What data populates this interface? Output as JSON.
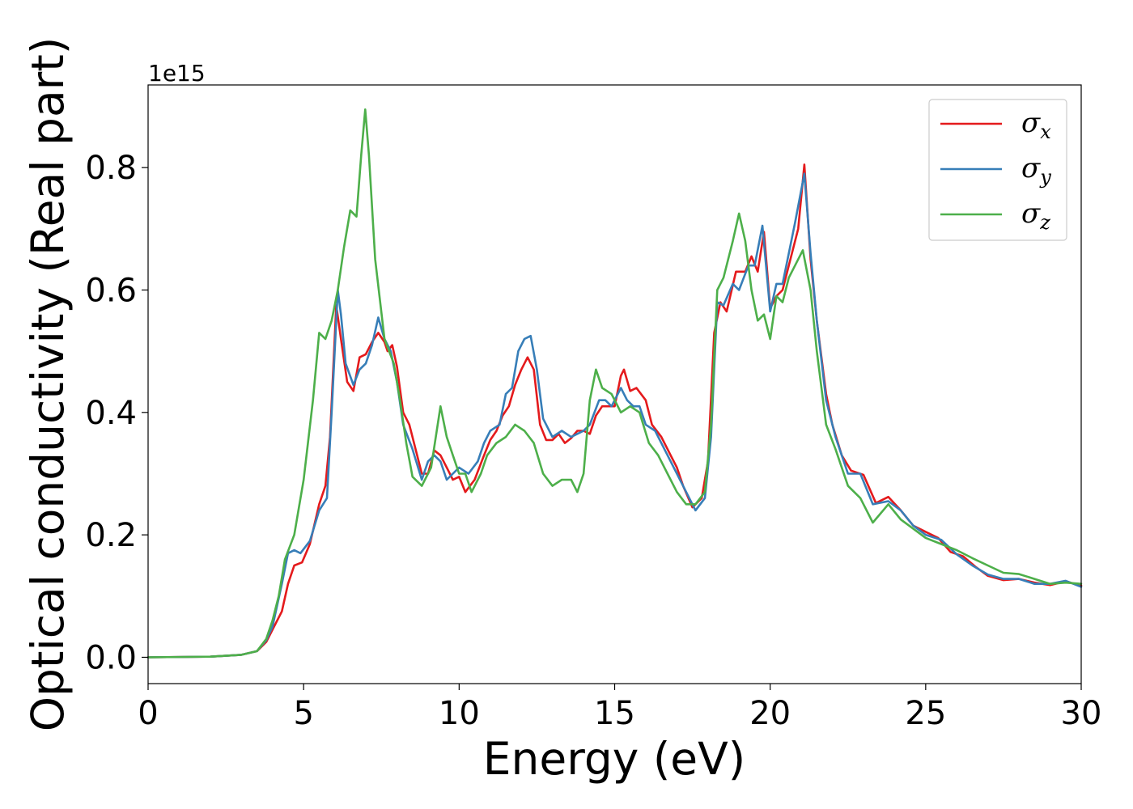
{
  "chart_data": {
    "type": "line",
    "xlabel": "Energy (eV)",
    "ylabel": "Optical conductivity (Real part)",
    "y_offset_text": "1e15",
    "xlim": [
      0,
      30
    ],
    "ylim": [
      -0.043,
      0.935
    ],
    "xticks": [
      0,
      5,
      10,
      15,
      20,
      25,
      30
    ],
    "xtick_labels": [
      "0",
      "5",
      "10",
      "15",
      "20",
      "25",
      "30"
    ],
    "yticks": [
      0.0,
      0.2,
      0.4,
      0.6,
      0.8
    ],
    "ytick_labels": [
      "0.0",
      "0.2",
      "0.4",
      "0.6",
      "0.8"
    ],
    "grid": false,
    "legend_position": "top-right",
    "series": [
      {
        "name": "σ",
        "subscript": "x",
        "color": "#e41a1c",
        "points": [
          [
            0,
            0
          ],
          [
            2,
            0.001
          ],
          [
            3,
            0.004
          ],
          [
            3.5,
            0.01
          ],
          [
            3.8,
            0.025
          ],
          [
            4.0,
            0.045
          ],
          [
            4.3,
            0.075
          ],
          [
            4.5,
            0.12
          ],
          [
            4.7,
            0.15
          ],
          [
            4.95,
            0.155
          ],
          [
            5.2,
            0.185
          ],
          [
            5.5,
            0.25
          ],
          [
            5.7,
            0.28
          ],
          [
            5.85,
            0.36
          ],
          [
            6.05,
            0.575
          ],
          [
            6.2,
            0.52
          ],
          [
            6.4,
            0.45
          ],
          [
            6.6,
            0.435
          ],
          [
            6.8,
            0.49
          ],
          [
            7.0,
            0.495
          ],
          [
            7.2,
            0.515
          ],
          [
            7.4,
            0.53
          ],
          [
            7.6,
            0.515
          ],
          [
            7.7,
            0.5
          ],
          [
            7.85,
            0.51
          ],
          [
            8.0,
            0.475
          ],
          [
            8.2,
            0.4
          ],
          [
            8.4,
            0.38
          ],
          [
            8.6,
            0.34
          ],
          [
            8.8,
            0.3
          ],
          [
            9.0,
            0.3
          ],
          [
            9.2,
            0.338
          ],
          [
            9.4,
            0.33
          ],
          [
            9.6,
            0.31
          ],
          [
            9.8,
            0.29
          ],
          [
            10.0,
            0.295
          ],
          [
            10.2,
            0.27
          ],
          [
            10.5,
            0.29
          ],
          [
            10.8,
            0.33
          ],
          [
            11.0,
            0.355
          ],
          [
            11.2,
            0.37
          ],
          [
            11.4,
            0.395
          ],
          [
            11.6,
            0.41
          ],
          [
            11.8,
            0.445
          ],
          [
            12.0,
            0.47
          ],
          [
            12.2,
            0.49
          ],
          [
            12.4,
            0.47
          ],
          [
            12.6,
            0.38
          ],
          [
            12.8,
            0.355
          ],
          [
            13.0,
            0.355
          ],
          [
            13.2,
            0.365
          ],
          [
            13.4,
            0.35
          ],
          [
            13.6,
            0.358
          ],
          [
            13.8,
            0.37
          ],
          [
            14.0,
            0.37
          ],
          [
            14.2,
            0.365
          ],
          [
            14.4,
            0.395
          ],
          [
            14.6,
            0.41
          ],
          [
            14.8,
            0.41
          ],
          [
            15.0,
            0.41
          ],
          [
            15.2,
            0.46
          ],
          [
            15.3,
            0.47
          ],
          [
            15.5,
            0.435
          ],
          [
            15.7,
            0.44
          ],
          [
            16.0,
            0.42
          ],
          [
            16.2,
            0.38
          ],
          [
            16.5,
            0.36
          ],
          [
            16.8,
            0.33
          ],
          [
            17.0,
            0.31
          ],
          [
            17.2,
            0.28
          ],
          [
            17.5,
            0.245
          ],
          [
            17.8,
            0.26
          ],
          [
            18.0,
            0.32
          ],
          [
            18.2,
            0.53
          ],
          [
            18.4,
            0.58
          ],
          [
            18.6,
            0.565
          ],
          [
            18.9,
            0.63
          ],
          [
            19.2,
            0.63
          ],
          [
            19.4,
            0.655
          ],
          [
            19.6,
            0.63
          ],
          [
            19.8,
            0.695
          ],
          [
            20.0,
            0.57
          ],
          [
            20.2,
            0.59
          ],
          [
            20.4,
            0.6
          ],
          [
            20.6,
            0.64
          ],
          [
            20.9,
            0.7
          ],
          [
            21.1,
            0.805
          ],
          [
            21.3,
            0.65
          ],
          [
            21.5,
            0.55
          ],
          [
            21.8,
            0.43
          ],
          [
            22.0,
            0.38
          ],
          [
            22.3,
            0.33
          ],
          [
            22.6,
            0.305
          ],
          [
            23.0,
            0.298
          ],
          [
            23.4,
            0.252
          ],
          [
            23.8,
            0.262
          ],
          [
            24.2,
            0.24
          ],
          [
            24.6,
            0.215
          ],
          [
            25.0,
            0.205
          ],
          [
            25.4,
            0.195
          ],
          [
            25.8,
            0.172
          ],
          [
            26.2,
            0.165
          ],
          [
            26.6,
            0.148
          ],
          [
            27.0,
            0.133
          ],
          [
            27.5,
            0.126
          ],
          [
            28.0,
            0.128
          ],
          [
            28.5,
            0.122
          ],
          [
            29.0,
            0.118
          ],
          [
            29.5,
            0.124
          ],
          [
            30.0,
            0.117
          ]
        ]
      },
      {
        "name": "σ",
        "subscript": "y",
        "color": "#377eb8",
        "points": [
          [
            0,
            0
          ],
          [
            2,
            0.001
          ],
          [
            3,
            0.004
          ],
          [
            3.5,
            0.01
          ],
          [
            3.8,
            0.028
          ],
          [
            4.0,
            0.05
          ],
          [
            4.3,
            0.12
          ],
          [
            4.5,
            0.17
          ],
          [
            4.7,
            0.175
          ],
          [
            4.9,
            0.17
          ],
          [
            5.2,
            0.19
          ],
          [
            5.5,
            0.24
          ],
          [
            5.75,
            0.26
          ],
          [
            5.9,
            0.4
          ],
          [
            6.1,
            0.6
          ],
          [
            6.2,
            0.56
          ],
          [
            6.35,
            0.48
          ],
          [
            6.6,
            0.445
          ],
          [
            6.8,
            0.47
          ],
          [
            7.0,
            0.48
          ],
          [
            7.2,
            0.51
          ],
          [
            7.4,
            0.555
          ],
          [
            7.6,
            0.52
          ],
          [
            7.8,
            0.5
          ],
          [
            8.0,
            0.45
          ],
          [
            8.2,
            0.38
          ],
          [
            8.5,
            0.34
          ],
          [
            8.8,
            0.29
          ],
          [
            9.0,
            0.32
          ],
          [
            9.2,
            0.33
          ],
          [
            9.4,
            0.32
          ],
          [
            9.6,
            0.29
          ],
          [
            9.8,
            0.3
          ],
          [
            10.0,
            0.31
          ],
          [
            10.3,
            0.3
          ],
          [
            10.6,
            0.32
          ],
          [
            10.8,
            0.35
          ],
          [
            11.0,
            0.37
          ],
          [
            11.3,
            0.38
          ],
          [
            11.5,
            0.43
          ],
          [
            11.7,
            0.44
          ],
          [
            11.9,
            0.5
          ],
          [
            12.1,
            0.52
          ],
          [
            12.3,
            0.525
          ],
          [
            12.5,
            0.47
          ],
          [
            12.7,
            0.39
          ],
          [
            13.0,
            0.36
          ],
          [
            13.3,
            0.37
          ],
          [
            13.6,
            0.36
          ],
          [
            13.8,
            0.365
          ],
          [
            14.0,
            0.37
          ],
          [
            14.2,
            0.38
          ],
          [
            14.5,
            0.42
          ],
          [
            14.7,
            0.42
          ],
          [
            14.9,
            0.41
          ],
          [
            15.2,
            0.44
          ],
          [
            15.4,
            0.42
          ],
          [
            15.6,
            0.41
          ],
          [
            15.8,
            0.41
          ],
          [
            16.0,
            0.38
          ],
          [
            16.3,
            0.37
          ],
          [
            16.6,
            0.34
          ],
          [
            17.0,
            0.3
          ],
          [
            17.3,
            0.27
          ],
          [
            17.6,
            0.24
          ],
          [
            17.9,
            0.26
          ],
          [
            18.1,
            0.36
          ],
          [
            18.3,
            0.58
          ],
          [
            18.5,
            0.575
          ],
          [
            18.8,
            0.61
          ],
          [
            19.0,
            0.6
          ],
          [
            19.3,
            0.64
          ],
          [
            19.5,
            0.64
          ],
          [
            19.75,
            0.705
          ],
          [
            20.0,
            0.565
          ],
          [
            20.2,
            0.61
          ],
          [
            20.4,
            0.61
          ],
          [
            20.6,
            0.66
          ],
          [
            20.8,
            0.71
          ],
          [
            21.1,
            0.79
          ],
          [
            21.3,
            0.66
          ],
          [
            21.5,
            0.55
          ],
          [
            21.8,
            0.42
          ],
          [
            22.1,
            0.36
          ],
          [
            22.5,
            0.3
          ],
          [
            22.9,
            0.3
          ],
          [
            23.3,
            0.25
          ],
          [
            23.8,
            0.255
          ],
          [
            24.2,
            0.24
          ],
          [
            24.6,
            0.215
          ],
          [
            25.0,
            0.2
          ],
          [
            25.5,
            0.192
          ],
          [
            26.0,
            0.168
          ],
          [
            26.5,
            0.15
          ],
          [
            27.0,
            0.135
          ],
          [
            27.5,
            0.128
          ],
          [
            28.0,
            0.128
          ],
          [
            28.5,
            0.12
          ],
          [
            29.0,
            0.12
          ],
          [
            29.5,
            0.125
          ],
          [
            30.0,
            0.115
          ]
        ]
      },
      {
        "name": "σ",
        "subscript": "z",
        "color": "#4daf4a",
        "points": [
          [
            0,
            0
          ],
          [
            2,
            0.001
          ],
          [
            3,
            0.004
          ],
          [
            3.5,
            0.01
          ],
          [
            3.8,
            0.03
          ],
          [
            4.0,
            0.06
          ],
          [
            4.2,
            0.1
          ],
          [
            4.4,
            0.16
          ],
          [
            4.7,
            0.2
          ],
          [
            5.0,
            0.29
          ],
          [
            5.3,
            0.42
          ],
          [
            5.5,
            0.53
          ],
          [
            5.7,
            0.52
          ],
          [
            5.9,
            0.55
          ],
          [
            6.1,
            0.6
          ],
          [
            6.3,
            0.67
          ],
          [
            6.5,
            0.73
          ],
          [
            6.7,
            0.72
          ],
          [
            6.85,
            0.82
          ],
          [
            6.98,
            0.895
          ],
          [
            7.1,
            0.82
          ],
          [
            7.3,
            0.65
          ],
          [
            7.6,
            0.52
          ],
          [
            7.9,
            0.48
          ],
          [
            8.1,
            0.42
          ],
          [
            8.3,
            0.35
          ],
          [
            8.5,
            0.295
          ],
          [
            8.8,
            0.28
          ],
          [
            9.1,
            0.31
          ],
          [
            9.4,
            0.41
          ],
          [
            9.6,
            0.36
          ],
          [
            9.8,
            0.33
          ],
          [
            10.0,
            0.3
          ],
          [
            10.2,
            0.3
          ],
          [
            10.4,
            0.27
          ],
          [
            10.7,
            0.3
          ],
          [
            10.9,
            0.33
          ],
          [
            11.2,
            0.35
          ],
          [
            11.5,
            0.36
          ],
          [
            11.8,
            0.38
          ],
          [
            12.1,
            0.37
          ],
          [
            12.4,
            0.35
          ],
          [
            12.7,
            0.3
          ],
          [
            13.0,
            0.28
          ],
          [
            13.3,
            0.29
          ],
          [
            13.6,
            0.29
          ],
          [
            13.8,
            0.27
          ],
          [
            14.0,
            0.3
          ],
          [
            14.2,
            0.42
          ],
          [
            14.4,
            0.47
          ],
          [
            14.6,
            0.44
          ],
          [
            14.9,
            0.43
          ],
          [
            15.2,
            0.4
          ],
          [
            15.5,
            0.41
          ],
          [
            15.8,
            0.4
          ],
          [
            16.1,
            0.35
          ],
          [
            16.4,
            0.33
          ],
          [
            16.7,
            0.3
          ],
          [
            17.0,
            0.27
          ],
          [
            17.3,
            0.25
          ],
          [
            17.6,
            0.25
          ],
          [
            17.9,
            0.27
          ],
          [
            18.1,
            0.38
          ],
          [
            18.3,
            0.6
          ],
          [
            18.5,
            0.62
          ],
          [
            18.8,
            0.68
          ],
          [
            19.0,
            0.725
          ],
          [
            19.2,
            0.68
          ],
          [
            19.4,
            0.6
          ],
          [
            19.6,
            0.55
          ],
          [
            19.8,
            0.56
          ],
          [
            20.0,
            0.52
          ],
          [
            20.2,
            0.59
          ],
          [
            20.4,
            0.58
          ],
          [
            20.6,
            0.62
          ],
          [
            20.8,
            0.64
          ],
          [
            21.05,
            0.665
          ],
          [
            21.3,
            0.6
          ],
          [
            21.5,
            0.5
          ],
          [
            21.8,
            0.38
          ],
          [
            22.1,
            0.34
          ],
          [
            22.5,
            0.28
          ],
          [
            22.9,
            0.26
          ],
          [
            23.3,
            0.22
          ],
          [
            23.8,
            0.25
          ],
          [
            24.2,
            0.225
          ],
          [
            24.6,
            0.21
          ],
          [
            25.0,
            0.195
          ],
          [
            25.5,
            0.185
          ],
          [
            26.0,
            0.175
          ],
          [
            26.5,
            0.162
          ],
          [
            27.0,
            0.15
          ],
          [
            27.5,
            0.138
          ],
          [
            28.0,
            0.136
          ],
          [
            28.5,
            0.128
          ],
          [
            29.0,
            0.12
          ],
          [
            29.5,
            0.122
          ],
          [
            30.0,
            0.12
          ]
        ]
      }
    ]
  }
}
